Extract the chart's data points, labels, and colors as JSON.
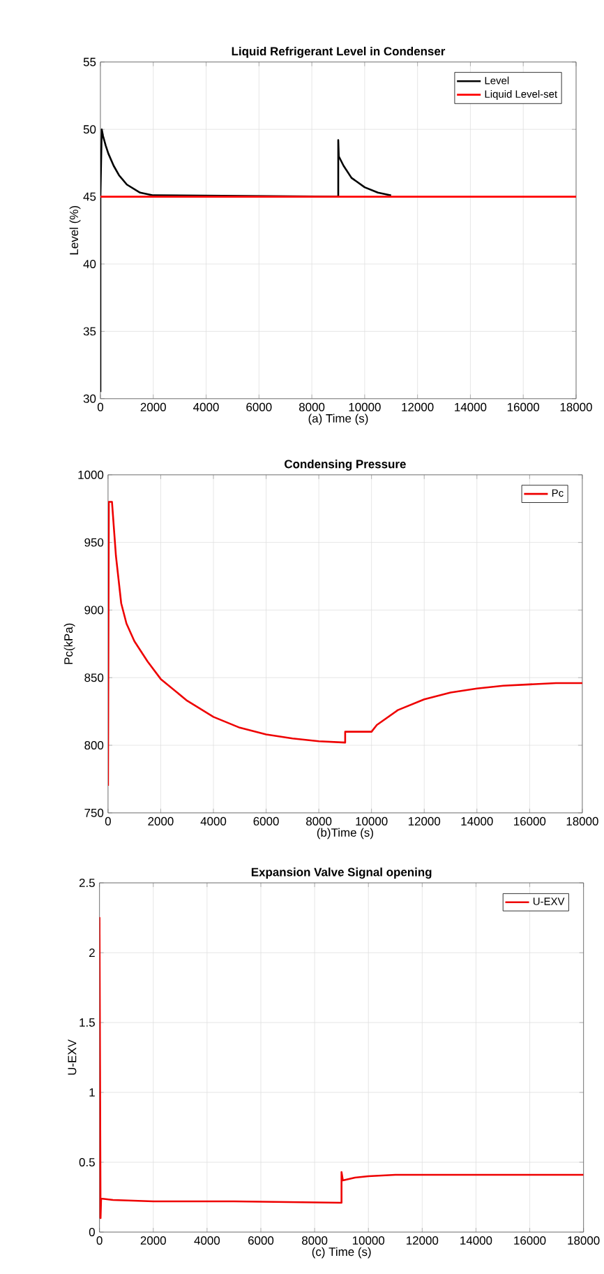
{
  "chart_data": [
    {
      "type": "line",
      "title": "Liquid Refrigerant Level in Condenser",
      "xlabel": "(a) Time (s)",
      "ylabel": "Level (%)",
      "xlim": [
        0,
        18000
      ],
      "ylim": [
        30,
        55
      ],
      "xticks": [
        0,
        2000,
        4000,
        6000,
        8000,
        10000,
        12000,
        14000,
        16000,
        18000
      ],
      "yticks": [
        30,
        35,
        40,
        45,
        50,
        55
      ],
      "grid": true,
      "legend": "top right",
      "series": [
        {
          "name": "Level",
          "color": "#000000",
          "x": [
            0,
            0,
            50,
            100,
            200,
            300,
            500,
            700,
            1000,
            1500,
            2000,
            9000,
            9000,
            9020,
            9200,
            9500,
            10000,
            10500,
            11000
          ],
          "values": [
            30.5,
            45,
            50,
            49.5,
            48.8,
            48.2,
            47.3,
            46.6,
            45.9,
            45.3,
            45.1,
            45,
            49.2,
            48,
            47.3,
            46.4,
            45.7,
            45.3,
            45.1
          ]
        },
        {
          "name": "Liquid Level-set",
          "color": "#ff0000",
          "x": [
            0,
            18000
          ],
          "values": [
            45,
            45
          ]
        }
      ]
    },
    {
      "type": "line",
      "title": "Condensing Pressure",
      "xlabel": "(b)Time (s)",
      "ylabel": "Pc(kPa)",
      "xlim": [
        0,
        18000
      ],
      "ylim": [
        750,
        1000
      ],
      "xticks": [
        0,
        2000,
        4000,
        6000,
        8000,
        10000,
        12000,
        14000,
        16000,
        18000
      ],
      "yticks": [
        750,
        800,
        850,
        900,
        950,
        1000
      ],
      "grid": true,
      "legend": "top right",
      "series": [
        {
          "name": "Pc",
          "color": "#ee0000",
          "x": [
            0,
            30,
            150,
            300,
            500,
            700,
            1000,
            1500,
            2000,
            3000,
            4000,
            5000,
            6000,
            7000,
            8000,
            9000,
            9000,
            10000,
            10200,
            11000,
            12000,
            13000,
            14000,
            15000,
            16000,
            17000,
            18000
          ],
          "values": [
            770,
            980,
            980,
            940,
            905,
            890,
            877,
            862,
            849,
            833,
            821,
            813,
            808,
            805,
            803,
            802,
            810,
            810,
            815,
            826,
            834,
            839,
            842,
            844,
            845,
            846,
            846
          ]
        }
      ]
    },
    {
      "type": "line",
      "title": "Expansion Valve Signal opening",
      "xlabel": "(c) Time (s)",
      "ylabel": "U-EXV",
      "xlim": [
        0,
        18000
      ],
      "ylim": [
        0,
        2.5
      ],
      "xticks": [
        0,
        2000,
        4000,
        6000,
        8000,
        10000,
        12000,
        14000,
        16000,
        18000
      ],
      "yticks": [
        0,
        0.5,
        1,
        1.5,
        2,
        2.5
      ],
      "grid": true,
      "legend": "top right",
      "series": [
        {
          "name": "U-EXV",
          "color": "#ee0000",
          "x": [
            0,
            0,
            40,
            60,
            500,
            2000,
            5000,
            9000,
            9000,
            9050,
            9500,
            10000,
            11000,
            18000
          ],
          "values": [
            0.1,
            2.25,
            0.1,
            0.24,
            0.23,
            0.22,
            0.22,
            0.21,
            0.43,
            0.37,
            0.39,
            0.4,
            0.41,
            0.41
          ]
        }
      ]
    }
  ]
}
